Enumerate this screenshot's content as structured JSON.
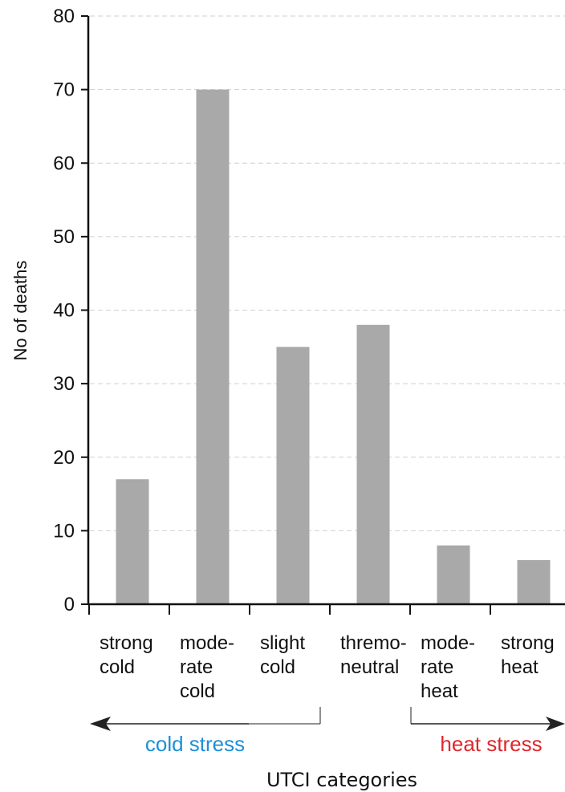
{
  "chart_data": {
    "type": "bar",
    "categories": [
      [
        "strong",
        "cold"
      ],
      [
        "mode-",
        "rate",
        "cold"
      ],
      [
        "slight",
        "cold"
      ],
      [
        "thremo-",
        "neutral"
      ],
      [
        "mode-",
        "rate",
        "heat"
      ],
      [
        "strong",
        "heat"
      ]
    ],
    "values": [
      17,
      70,
      35,
      38,
      8,
      6
    ],
    "ylabel": "No of deaths",
    "xlabel": "UTCI categories",
    "ylim": [
      0,
      80
    ],
    "yticks": [
      0,
      10,
      20,
      30,
      40,
      50,
      60,
      70,
      80
    ],
    "grid": true,
    "bar_color": "#a9a9a9",
    "groups": [
      {
        "label": "cold stress",
        "color": "#1e8fd6"
      },
      {
        "label": "heat stress",
        "color": "#e0262b"
      }
    ]
  }
}
